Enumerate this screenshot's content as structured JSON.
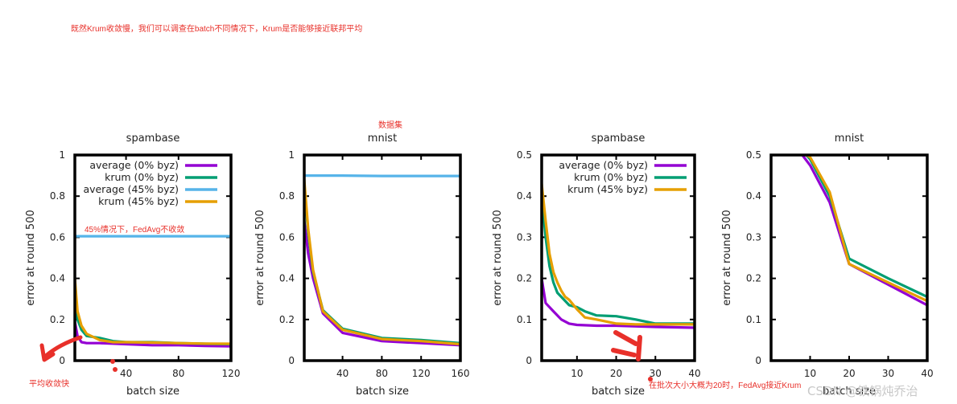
{
  "annotations": {
    "top_note": "既然Krum收敛慢，我们可以调查在batch不同情况下，Krum是否能够接近联邦平均",
    "dataset_label": "数据集",
    "fedavg_note": "45%情况下，FedAvg不收敛",
    "avg_fast_note": "平均收敛快",
    "batch20_note": "在批次大小大概为20时，FedAvg接近Krum"
  },
  "watermark": "CSDN @铁锅炖乔治",
  "colors": {
    "average_0": "#9400d3",
    "krum_0": "#009e73",
    "average_45": "#56b4e9",
    "krum_45": "#e69f00",
    "annotation": "#e8302a"
  },
  "chart_data": [
    {
      "type": "line",
      "title": "spambase",
      "xlabel": "batch size",
      "ylabel": "error at round 500",
      "xlim": [
        1,
        120
      ],
      "ylim": [
        0,
        1
      ],
      "xticks": [
        40,
        80,
        120
      ],
      "yticks": [
        0,
        0.2,
        0.4,
        0.6,
        0.8,
        1
      ],
      "ytick_labels": [
        "0",
        "0.2",
        "0.4",
        "0.6",
        "0.8",
        "1"
      ],
      "legend": [
        "average (0% byz)",
        "krum (0% byz)",
        "average (45% byz)",
        "krum (45% byz)"
      ],
      "series": [
        {
          "name": "average (0% byz)",
          "x": [
            1,
            3,
            6,
            10,
            20,
            40,
            60,
            80,
            100,
            120
          ],
          "values": [
            0.19,
            0.12,
            0.09,
            0.085,
            0.085,
            0.08,
            0.075,
            0.075,
            0.072,
            0.07
          ]
        },
        {
          "name": "krum (0% byz)",
          "x": [
            1,
            3,
            6,
            10,
            20,
            30,
            40,
            60,
            80,
            100,
            120
          ],
          "values": [
            0.35,
            0.2,
            0.15,
            0.12,
            0.11,
            0.095,
            0.09,
            0.09,
            0.085,
            0.082,
            0.08
          ]
        },
        {
          "name": "average (45% byz)",
          "x": [
            1,
            20,
            40,
            60,
            80,
            100,
            120
          ],
          "values": [
            0.605,
            0.605,
            0.605,
            0.605,
            0.605,
            0.605,
            0.605
          ]
        },
        {
          "name": "krum (45% byz)",
          "x": [
            1,
            3,
            6,
            10,
            20,
            30,
            40,
            60,
            80,
            100,
            120
          ],
          "values": [
            0.4,
            0.24,
            0.17,
            0.13,
            0.1,
            0.09,
            0.09,
            0.088,
            0.085,
            0.083,
            0.082
          ]
        }
      ]
    },
    {
      "type": "line",
      "title": "mnist",
      "xlabel": "batch size",
      "ylabel": "error at round 500",
      "xlim": [
        1,
        160
      ],
      "ylim": [
        0,
        1
      ],
      "xticks": [
        40,
        80,
        120,
        160
      ],
      "yticks": [
        0,
        0.2,
        0.4,
        0.6,
        0.8,
        1
      ],
      "ytick_labels": [
        "0",
        "0.2",
        "0.4",
        "0.6",
        "0.8",
        "1"
      ],
      "series": [
        {
          "name": "average (0% byz)",
          "x": [
            1,
            5,
            10,
            20,
            40,
            80,
            120,
            160
          ],
          "values": [
            0.68,
            0.52,
            0.4,
            0.23,
            0.135,
            0.095,
            0.085,
            0.075
          ]
        },
        {
          "name": "krum (0% byz)",
          "x": [
            1,
            5,
            10,
            20,
            40,
            80,
            120,
            160
          ],
          "values": [
            0.86,
            0.62,
            0.43,
            0.245,
            0.155,
            0.11,
            0.1,
            0.085
          ]
        },
        {
          "name": "average (45% byz)",
          "x": [
            1,
            40,
            80,
            120,
            160
          ],
          "values": [
            0.9,
            0.9,
            0.898,
            0.898,
            0.898
          ]
        },
        {
          "name": "krum (45% byz)",
          "x": [
            1,
            5,
            10,
            20,
            40,
            80,
            120,
            160
          ],
          "values": [
            0.88,
            0.64,
            0.44,
            0.24,
            0.15,
            0.105,
            0.095,
            0.08
          ]
        }
      ]
    },
    {
      "type": "line",
      "title": "spambase",
      "xlabel": "batch size",
      "ylabel": "error at round 500",
      "xlim": [
        1,
        40
      ],
      "ylim": [
        0,
        0.5
      ],
      "xticks": [
        10,
        20,
        30,
        40
      ],
      "yticks": [
        0,
        0.1,
        0.2,
        0.3,
        0.4,
        0.5
      ],
      "ytick_labels": [
        "0",
        "0.1",
        "0.2",
        "0.3",
        "0.4",
        "0.5"
      ],
      "legend": [
        "average (0% byz)",
        "krum (0% byz)",
        "krum (45% byz)"
      ],
      "series": [
        {
          "name": "average (0% byz)",
          "x": [
            1,
            2,
            4,
            6,
            8,
            10,
            15,
            20,
            30,
            40
          ],
          "values": [
            0.2,
            0.14,
            0.12,
            0.1,
            0.09,
            0.087,
            0.085,
            0.085,
            0.082,
            0.08
          ]
        },
        {
          "name": "krum (0% byz)",
          "x": [
            1,
            2,
            3,
            4,
            5,
            6,
            8,
            10,
            12,
            15,
            20,
            25,
            30,
            35,
            40
          ],
          "values": [
            0.4,
            0.3,
            0.23,
            0.19,
            0.165,
            0.155,
            0.135,
            0.13,
            0.12,
            0.11,
            0.108,
            0.1,
            0.09,
            0.09,
            0.09
          ]
        },
        {
          "name": "krum (45% byz)",
          "x": [
            1,
            2,
            3,
            4,
            5,
            6,
            7,
            8,
            10,
            12,
            15,
            20,
            25,
            30,
            35,
            40
          ],
          "values": [
            0.43,
            0.34,
            0.26,
            0.215,
            0.19,
            0.17,
            0.155,
            0.148,
            0.125,
            0.105,
            0.1,
            0.09,
            0.088,
            0.088,
            0.088,
            0.088
          ]
        }
      ]
    },
    {
      "type": "line",
      "title": "mnist",
      "xlabel": "batch size",
      "ylabel": "error at round 500",
      "xlim": [
        0,
        40
      ],
      "ylim": [
        0,
        0.5
      ],
      "xticks": [
        10,
        20,
        30,
        40
      ],
      "yticks": [
        0,
        0.1,
        0.2,
        0.3,
        0.4,
        0.5
      ],
      "ytick_labels": [
        "0",
        "0.1",
        "0.2",
        "0.3",
        "0.4",
        "0.5"
      ],
      "series": [
        {
          "name": "average (0% byz)",
          "x": [
            8,
            10,
            15,
            20,
            30,
            40
          ],
          "values": [
            0.5,
            0.475,
            0.385,
            0.235,
            0.185,
            0.135
          ]
        },
        {
          "name": "krum (0% byz)",
          "x": [
            9,
            10,
            15,
            20,
            30,
            40
          ],
          "values": [
            0.5,
            0.49,
            0.4,
            0.248,
            0.2,
            0.155
          ]
        },
        {
          "name": "krum (45% byz)",
          "x": [
            9,
            10,
            15,
            20,
            30,
            40
          ],
          "values": [
            0.5,
            0.495,
            0.41,
            0.235,
            0.19,
            0.145
          ]
        }
      ]
    }
  ]
}
